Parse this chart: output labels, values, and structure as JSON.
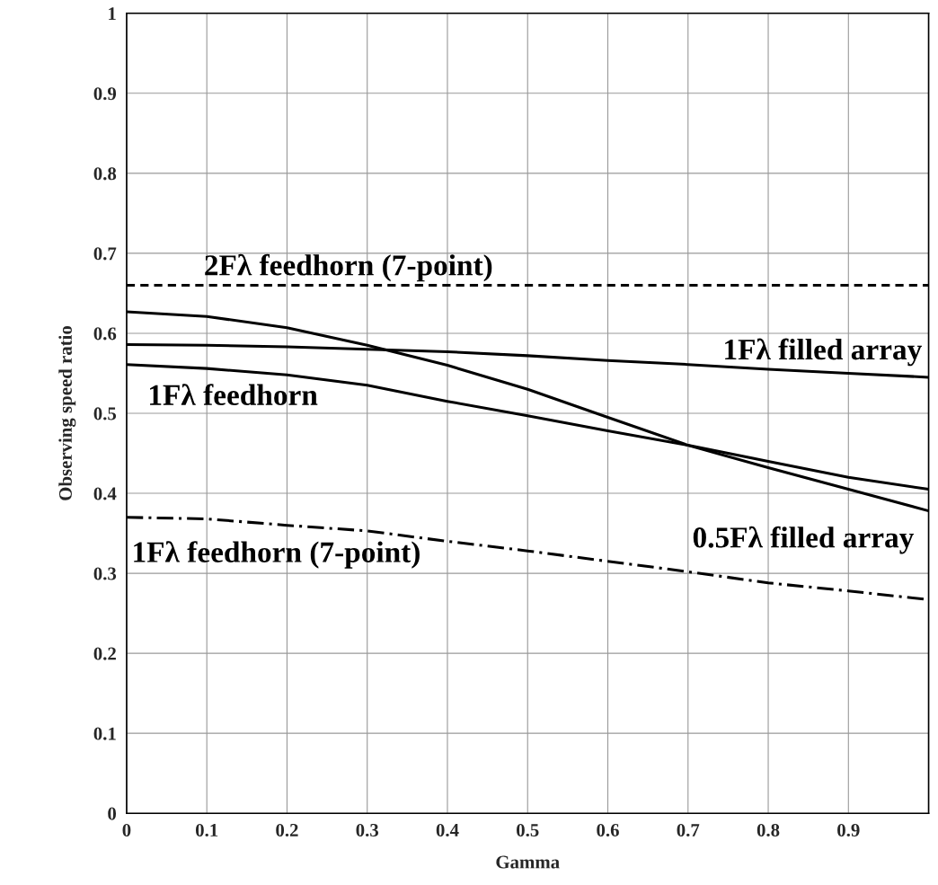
{
  "chart_data": {
    "type": "line",
    "xlabel": "Gamma",
    "ylabel": "Observing speed ratio",
    "x": [
      0,
      0.1,
      0.2,
      0.3,
      0.4,
      0.5,
      0.6,
      0.7,
      0.8,
      0.9,
      1
    ],
    "series": [
      {
        "name": "2Fλ feedhorn (7-point)",
        "color": "#000000",
        "line_style": "dashed",
        "values": [
          0.66,
          0.66,
          0.66,
          0.66,
          0.66,
          0.66,
          0.66,
          0.66,
          0.66,
          0.66,
          0.66
        ]
      },
      {
        "name": "1Fλ filled array",
        "color": "#000000",
        "line_style": "solid",
        "values": [
          0.586,
          0.585,
          0.583,
          0.58,
          0.577,
          0.572,
          0.566,
          0.561,
          0.555,
          0.55,
          0.545
        ]
      },
      {
        "name": "0.5Fλ filled array",
        "color": "#000000",
        "line_style": "solid",
        "values": [
          0.627,
          0.621,
          0.607,
          0.585,
          0.56,
          0.53,
          0.495,
          0.46,
          0.432,
          0.405,
          0.378
        ]
      },
      {
        "name": "1Fλ feedhorn",
        "color": "#000000",
        "line_style": "solid",
        "values": [
          0.561,
          0.556,
          0.548,
          0.535,
          0.515,
          0.497,
          0.478,
          0.46,
          0.44,
          0.42,
          0.405
        ]
      },
      {
        "name": "1Fλ feedhorn (7-point)",
        "color": "#000000",
        "line_style": "dashdot",
        "values": [
          0.37,
          0.368,
          0.36,
          0.353,
          0.34,
          0.328,
          0.315,
          0.302,
          0.288,
          0.278,
          0.267
        ]
      }
    ],
    "xlim": [
      0,
      1
    ],
    "ylim": [
      0,
      1
    ],
    "xticks": [
      0,
      0.1,
      0.2,
      0.3,
      0.4,
      0.5,
      0.6,
      0.7,
      0.8,
      0.9,
      {
        "value": 1,
        "label": null
      }
    ],
    "yticks": [
      0,
      0.1,
      0.2,
      0.3,
      0.4,
      0.5,
      0.6,
      0.7,
      0.8,
      0.9,
      1
    ],
    "grid": true,
    "legend": false,
    "marker": "none"
  }
}
